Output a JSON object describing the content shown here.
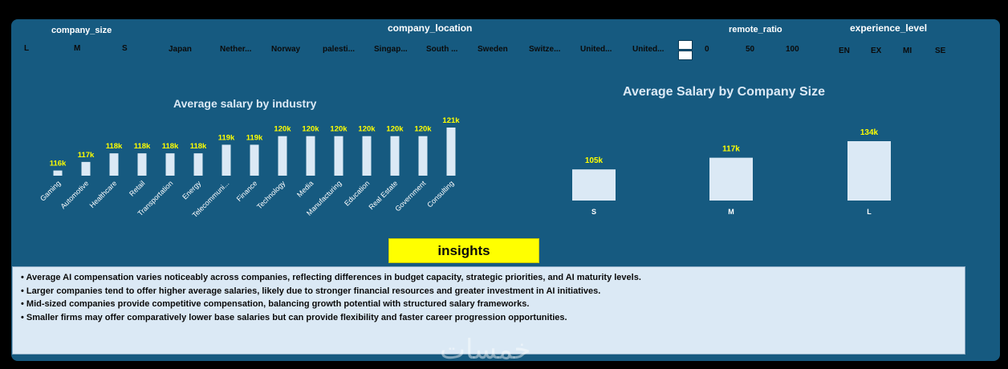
{
  "slicers": {
    "company_size": {
      "title": "company_size",
      "items": [
        "L",
        "M",
        "S"
      ]
    },
    "company_location": {
      "title": "company_location",
      "items": [
        "Japan",
        "Nether...",
        "Norway",
        "palesti...",
        "Singap...",
        "South ...",
        "Sweden",
        "Switze...",
        "United...",
        "United..."
      ]
    },
    "remote_ratio": {
      "title": "remote_ratio",
      "items": [
        "0",
        "50",
        "100"
      ]
    },
    "experience_level": {
      "title": "experience_level",
      "items": [
        "EN",
        "EX",
        "MI",
        "SE"
      ]
    }
  },
  "chart_data": [
    {
      "type": "bar",
      "title": "Average salary by industry",
      "categories": [
        "Gaming",
        "Automotive",
        "Healthcare",
        "Retail",
        "Transportation",
        "Energy",
        "Telecommuni...",
        "Finance",
        "Technology",
        "Media",
        "Manufacturing",
        "Education",
        "Real Estate",
        "Government",
        "Consulting"
      ],
      "values": [
        116,
        117,
        118,
        118,
        118,
        118,
        119,
        119,
        120,
        120,
        120,
        120,
        120,
        120,
        121
      ],
      "data_labels": [
        "116k",
        "117k",
        "118k",
        "118k",
        "118k",
        "118k",
        "119k",
        "119k",
        "120k",
        "120k",
        "120k",
        "120k",
        "120k",
        "120k",
        "121k"
      ],
      "bar_color": "#dbe9f5",
      "label_color": "#ffff00",
      "ylim": [
        115.4,
        121
      ],
      "grid": false
    },
    {
      "type": "bar",
      "title": "Average Salary by Company Size",
      "categories": [
        "S",
        "M",
        "L"
      ],
      "values": [
        105,
        117,
        134
      ],
      "data_labels": [
        "105k",
        "117k",
        "134k"
      ],
      "bar_color": "#dbe9f5",
      "label_color": "#ffff00",
      "ylim": [
        73,
        134
      ],
      "grid": false
    }
  ],
  "insights": {
    "button_label": "insights",
    "lines": [
      "• Average AI compensation varies noticeably across companies, reflecting differences in budget capacity, strategic priorities, and AI maturity levels.",
      "• Larger companies tend to offer higher average salaries, likely due to stronger financial resources and greater investment in AI initiatives.",
      "• Mid-sized companies provide competitive compensation, balancing growth potential with structured salary frameworks.",
      "• Smaller firms may offer comparatively lower base salaries but can provide flexibility and faster career progression opportunities."
    ]
  },
  "watermark": "خمسات",
  "colors": {
    "panel": "#165a80",
    "accent": "#ffff00",
    "light": "#dbe9f5"
  }
}
